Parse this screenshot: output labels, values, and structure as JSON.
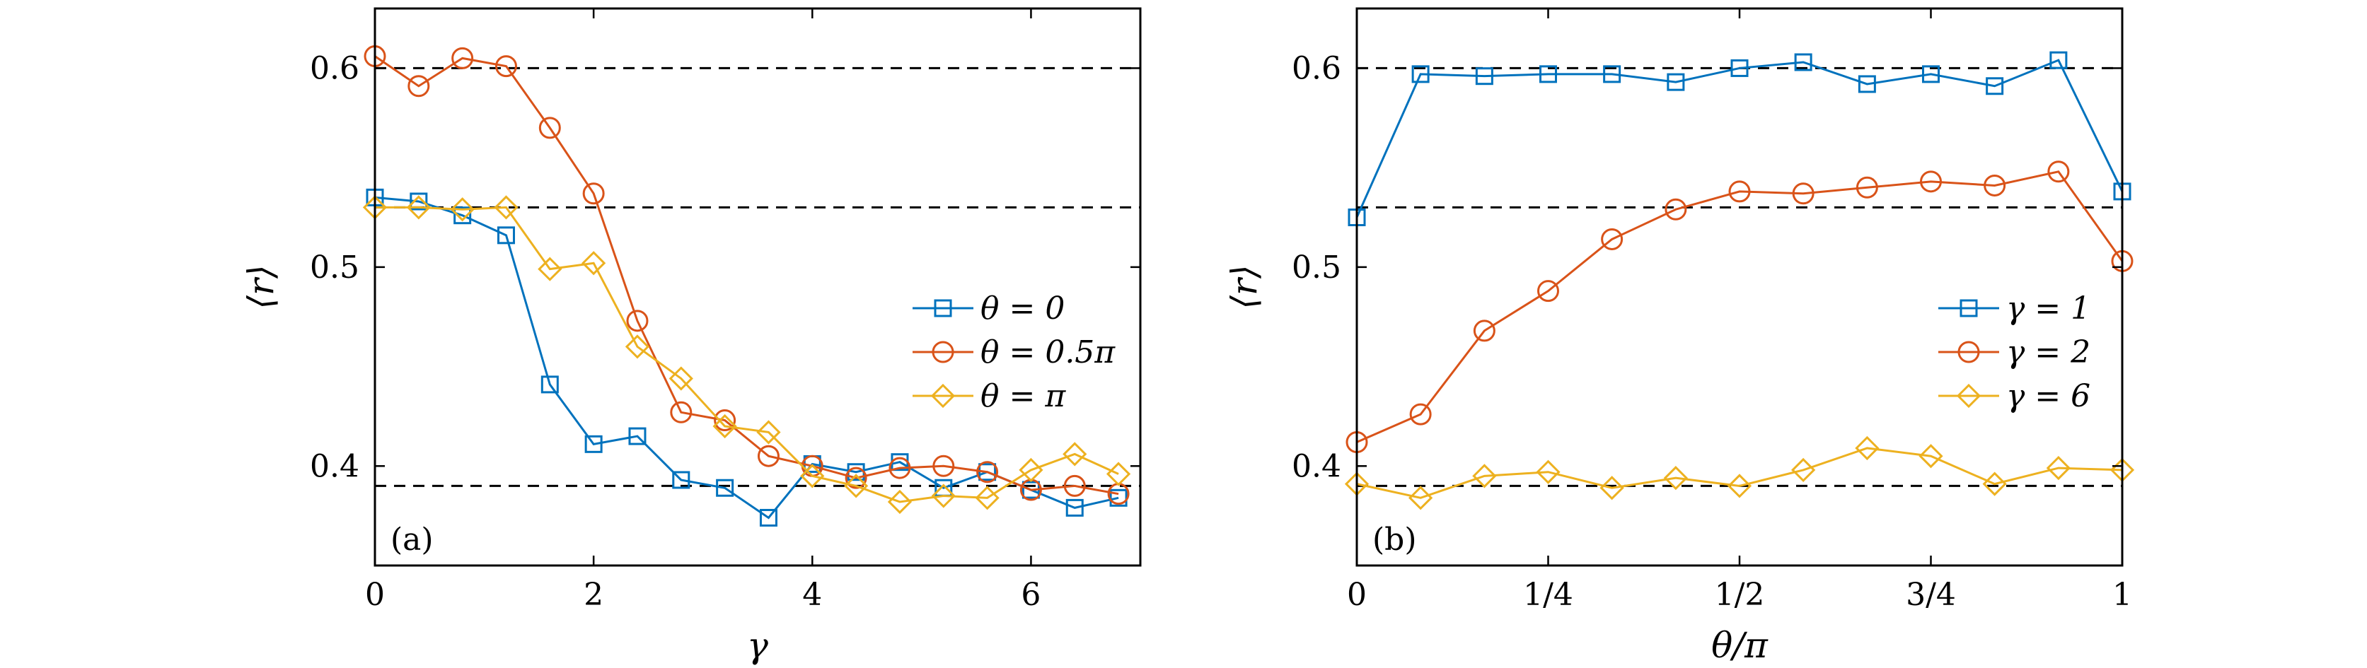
{
  "colors": {
    "blue": "#0072BD",
    "orange": "#D95319",
    "yellow": "#EDB120"
  },
  "chart_data": [
    {
      "type": "line",
      "panel_label": "(a)",
      "xlabel": "γ",
      "ylabel": "⟨r⟩",
      "xlim": [
        0,
        7
      ],
      "ylim": [
        0.35,
        0.63
      ],
      "xticks": [
        0,
        2,
        4,
        6
      ],
      "xtick_labels": [
        "0",
        "2",
        "4",
        "6"
      ],
      "yticks": [
        0.4,
        0.5,
        0.6
      ],
      "ytick_labels": [
        "0.4",
        "0.5",
        "0.6"
      ],
      "reference_lines": [
        0.6,
        0.53,
        0.39
      ],
      "legend_position": "middle-right",
      "x": [
        0,
        0.4,
        0.8,
        1.2,
        1.6,
        2.0,
        2.4,
        2.8,
        3.2,
        3.6,
        4.0,
        4.4,
        4.8,
        5.2,
        5.6,
        6.0,
        6.4,
        6.8
      ],
      "series": [
        {
          "name": "θ = 0",
          "marker": "square",
          "color": "blue",
          "values": [
            0.535,
            0.533,
            0.526,
            0.516,
            0.441,
            0.411,
            0.415,
            0.393,
            0.389,
            0.374,
            0.401,
            0.397,
            0.402,
            0.389,
            0.397,
            0.388,
            0.379,
            0.384
          ]
        },
        {
          "name": "θ = 0.5π",
          "marker": "circle",
          "color": "orange",
          "values": [
            0.606,
            0.591,
            0.605,
            0.601,
            0.57,
            0.537,
            0.473,
            0.427,
            0.423,
            0.405,
            0.4,
            0.394,
            0.399,
            0.4,
            0.397,
            0.388,
            0.39,
            0.386
          ]
        },
        {
          "name": "θ = π",
          "marker": "diamond",
          "color": "yellow",
          "values": [
            0.53,
            0.53,
            0.529,
            0.53,
            0.499,
            0.502,
            0.46,
            0.444,
            0.42,
            0.417,
            0.395,
            0.39,
            0.382,
            0.385,
            0.384,
            0.398,
            0.406,
            0.396
          ]
        }
      ]
    },
    {
      "type": "line",
      "panel_label": "(b)",
      "xlabel": "θ/π",
      "ylabel": "⟨r⟩",
      "xlim": [
        0,
        1
      ],
      "ylim": [
        0.35,
        0.63
      ],
      "xticks": [
        0,
        0.25,
        0.5,
        0.75,
        1
      ],
      "xtick_labels": [
        "0",
        "1/4",
        "1/2",
        "3/4",
        "1"
      ],
      "yticks": [
        0.4,
        0.5,
        0.6
      ],
      "ytick_labels": [
        "0.4",
        "0.5",
        "0.6"
      ],
      "reference_lines": [
        0.6,
        0.53,
        0.39
      ],
      "legend_position": "lower-right",
      "x": [
        0,
        0.0833,
        0.1667,
        0.25,
        0.3333,
        0.4167,
        0.5,
        0.5833,
        0.6667,
        0.75,
        0.8333,
        0.9167,
        1.0
      ],
      "series": [
        {
          "name": "γ = 1",
          "marker": "square",
          "color": "blue",
          "values": [
            0.525,
            0.597,
            0.596,
            0.597,
            0.597,
            0.593,
            0.6,
            0.603,
            0.592,
            0.597,
            0.591,
            0.604,
            0.538
          ]
        },
        {
          "name": "γ = 2",
          "marker": "circle",
          "color": "orange",
          "values": [
            0.412,
            0.426,
            0.468,
            0.488,
            0.514,
            0.529,
            0.538,
            0.537,
            0.54,
            0.543,
            0.541,
            0.548,
            0.503
          ]
        },
        {
          "name": "γ = 6",
          "marker": "diamond",
          "color": "yellow",
          "values": [
            0.391,
            0.384,
            0.395,
            0.397,
            0.389,
            0.394,
            0.39,
            0.398,
            0.409,
            0.405,
            0.391,
            0.399,
            0.398
          ]
        }
      ]
    }
  ]
}
